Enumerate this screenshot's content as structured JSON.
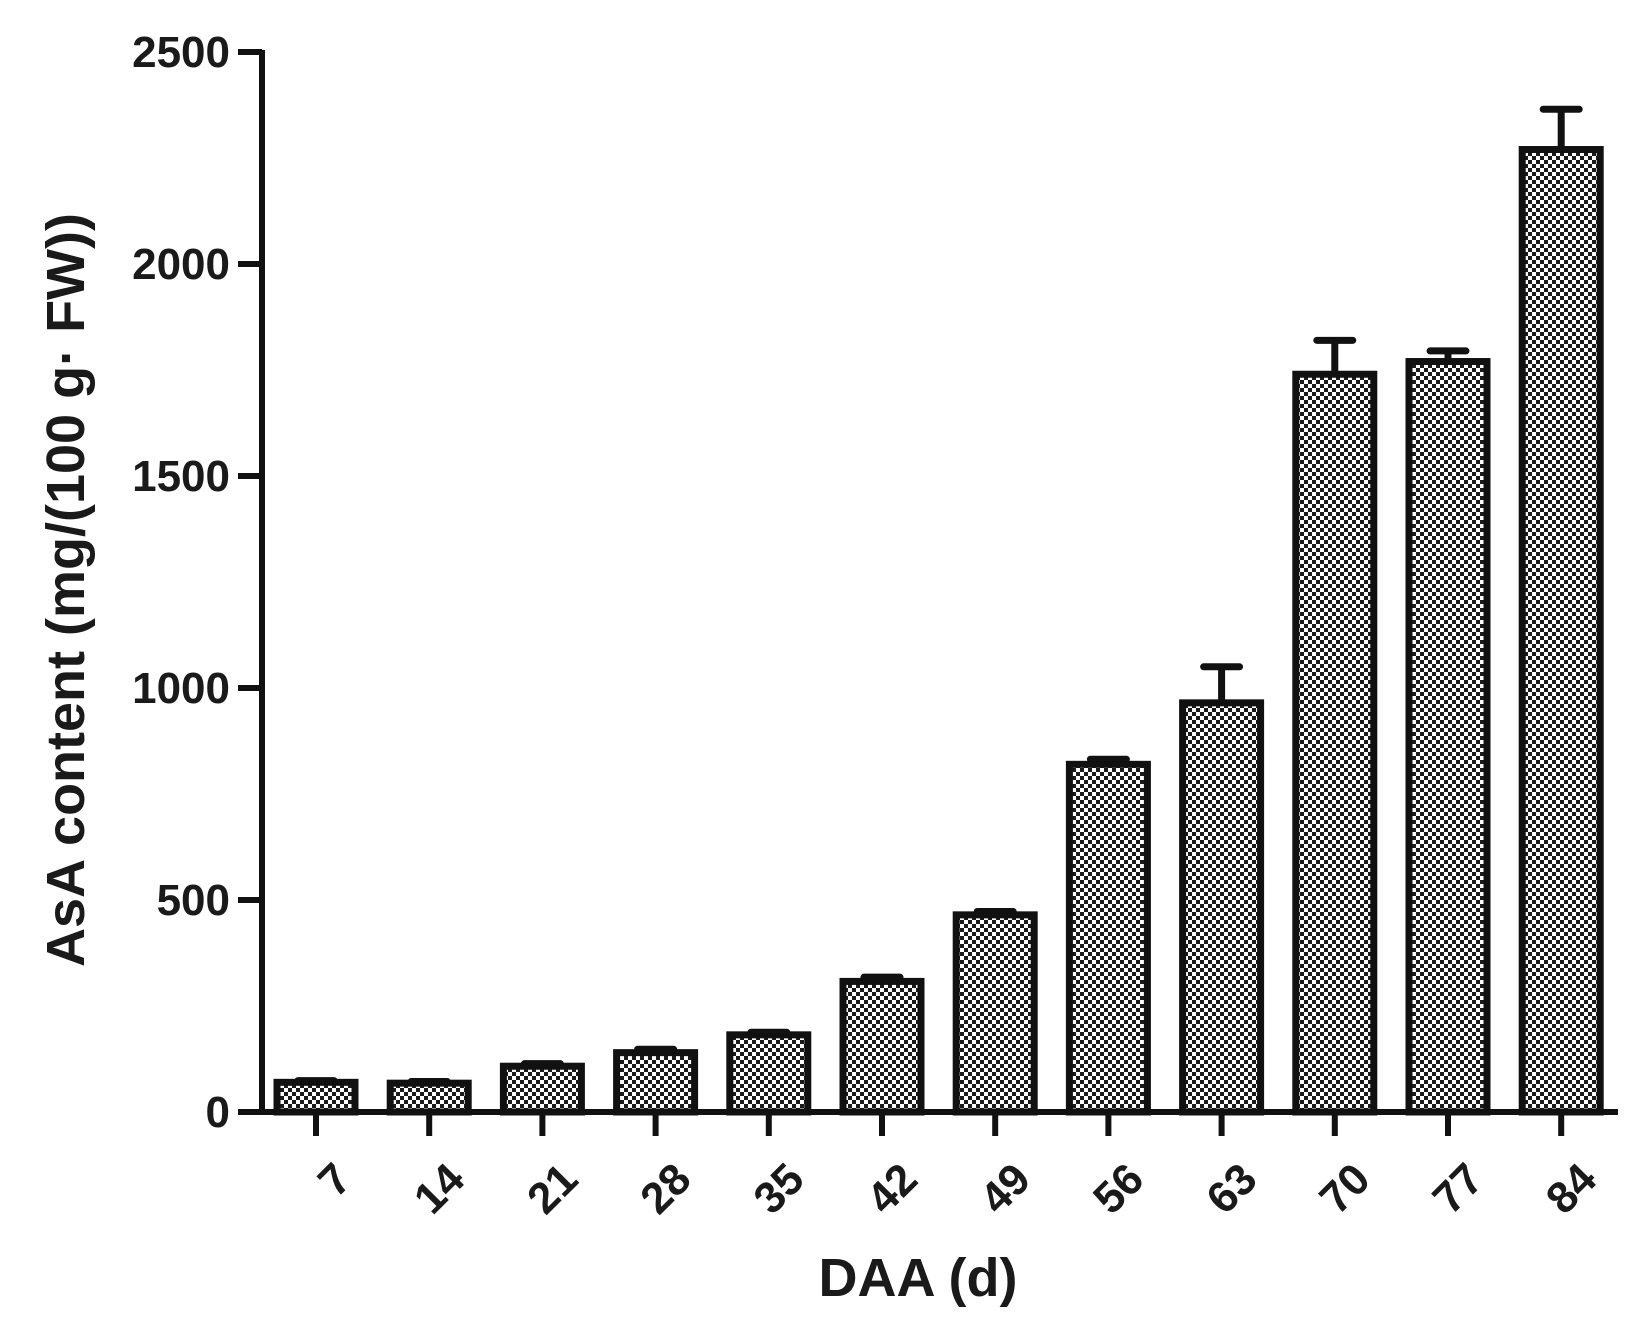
{
  "chart_data": {
    "type": "bar",
    "title": "",
    "xlabel": "DAA (d)",
    "ylabel": "AsA content (mg/(100 g· FW))",
    "categories": [
      "7",
      "14",
      "21",
      "28",
      "35",
      "42",
      "49",
      "56",
      "63",
      "70",
      "77",
      "84"
    ],
    "values": [
      70,
      68,
      108,
      140,
      182,
      308,
      465,
      820,
      965,
      1740,
      1770,
      2270
    ],
    "error": [
      4,
      4,
      6,
      8,
      6,
      10,
      8,
      12,
      85,
      80,
      25,
      95
    ],
    "ylim": [
      0,
      2500
    ],
    "yticks": [
      0,
      500,
      1000,
      1500,
      2000,
      2500
    ],
    "grid": false,
    "bar_fill": "checkerboard",
    "colors": {
      "outline": "#111111",
      "fill_dark": "#1a1a1a",
      "fill_light": "#ffffff"
    }
  }
}
